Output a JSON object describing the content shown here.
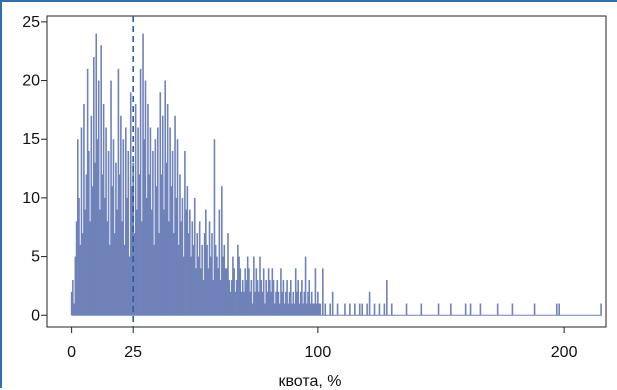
{
  "chart_data": {
    "type": "bar",
    "title": "",
    "xlabel": "квота, %",
    "ylabel": "",
    "xlim": [
      -10,
      217
    ],
    "ylim": [
      -1,
      25.5
    ],
    "x_ticks": [
      0,
      25,
      100,
      200
    ],
    "x_tick_labels": [
      "0",
      "25",
      "100",
      "200"
    ],
    "y_ticks": [
      0,
      5,
      10,
      15,
      20,
      25
    ],
    "y_tick_labels": [
      "0",
      "5",
      "10",
      "15",
      "20",
      "25"
    ],
    "reference_line": {
      "x": 25,
      "style": "dashed"
    },
    "grid": false,
    "legend": "none",
    "bar_color": "#6f82b9",
    "ref_line_color": "#2f5f9a",
    "series": [
      {
        "values": [
          [
            0,
            2
          ],
          [
            0.5,
            3
          ],
          [
            1,
            1
          ],
          [
            1.5,
            5
          ],
          [
            2,
            8
          ],
          [
            2.5,
            15
          ],
          [
            3,
            10
          ],
          [
            3.5,
            6
          ],
          [
            4,
            16
          ],
          [
            4.5,
            7
          ],
          [
            5,
            18
          ],
          [
            5.5,
            9
          ],
          [
            6,
            12
          ],
          [
            6.5,
            21
          ],
          [
            7,
            14
          ],
          [
            7.5,
            8
          ],
          [
            8,
            17
          ],
          [
            8.5,
            11
          ],
          [
            9,
            22
          ],
          [
            9.5,
            13
          ],
          [
            10,
            24
          ],
          [
            10.5,
            15
          ],
          [
            11,
            20
          ],
          [
            11.5,
            9
          ],
          [
            12,
            23
          ],
          [
            12.5,
            12
          ],
          [
            13,
            18
          ],
          [
            13.5,
            10
          ],
          [
            14,
            16
          ],
          [
            14.5,
            8
          ],
          [
            15,
            14
          ],
          [
            15.5,
            6
          ],
          [
            16,
            20
          ],
          [
            16.5,
            11
          ],
          [
            17,
            15
          ],
          [
            17.5,
            7
          ],
          [
            18,
            13
          ],
          [
            18.5,
            9
          ],
          [
            19,
            21
          ],
          [
            19.5,
            12
          ],
          [
            20,
            17
          ],
          [
            20.5,
            8
          ],
          [
            21,
            15
          ],
          [
            21.5,
            6
          ],
          [
            22,
            16
          ],
          [
            22.5,
            10
          ],
          [
            23,
            14
          ],
          [
            23.5,
            5
          ],
          [
            24,
            19
          ],
          [
            24.5,
            11
          ],
          [
            25,
            13
          ],
          [
            25.5,
            7
          ],
          [
            26,
            18
          ],
          [
            26.5,
            9
          ],
          [
            27,
            16
          ],
          [
            27.5,
            12
          ],
          [
            28,
            21
          ],
          [
            28.5,
            8
          ],
          [
            29,
            24
          ],
          [
            29.5,
            15
          ],
          [
            30,
            20
          ],
          [
            30.5,
            10
          ],
          [
            31,
            18
          ],
          [
            31.5,
            12
          ],
          [
            32,
            16
          ],
          [
            32.5,
            9
          ],
          [
            33,
            14
          ],
          [
            33.5,
            6
          ],
          [
            34,
            15
          ],
          [
            34.5,
            11
          ],
          [
            35,
            16
          ],
          [
            35.5,
            7
          ],
          [
            36,
            19
          ],
          [
            36.5,
            12
          ],
          [
            37,
            17
          ],
          [
            37.5,
            9
          ],
          [
            38,
            20
          ],
          [
            38.5,
            13
          ],
          [
            39,
            18
          ],
          [
            39.5,
            8
          ],
          [
            40,
            16
          ],
          [
            40.5,
            11
          ],
          [
            41,
            14
          ],
          [
            41.5,
            7
          ],
          [
            42,
            17
          ],
          [
            42.5,
            10
          ],
          [
            43,
            15
          ],
          [
            43.5,
            6
          ],
          [
            44,
            12
          ],
          [
            44.5,
            8
          ],
          [
            45,
            10
          ],
          [
            45.5,
            5
          ],
          [
            46,
            14
          ],
          [
            46.5,
            9
          ],
          [
            47,
            11
          ],
          [
            47.5,
            7
          ],
          [
            48,
            9
          ],
          [
            48.5,
            5
          ],
          [
            49,
            8
          ],
          [
            49.5,
            6
          ],
          [
            50,
            10
          ],
          [
            50.5,
            4
          ],
          [
            51,
            7
          ],
          [
            51.5,
            5
          ],
          [
            52,
            8
          ],
          [
            52.5,
            4
          ],
          [
            53,
            6
          ],
          [
            53.5,
            3
          ],
          [
            54,
            7
          ],
          [
            54.5,
            9
          ],
          [
            55,
            6
          ],
          [
            55.5,
            4
          ],
          [
            56,
            8
          ],
          [
            56.5,
            5
          ],
          [
            57,
            7
          ],
          [
            57.5,
            3
          ],
          [
            58,
            15
          ],
          [
            58.5,
            6
          ],
          [
            59,
            5
          ],
          [
            59.5,
            4
          ],
          [
            60,
            9
          ],
          [
            60.5,
            3
          ],
          [
            61,
            11
          ],
          [
            61.5,
            5
          ],
          [
            62,
            6
          ],
          [
            62.5,
            4
          ],
          [
            63,
            4
          ],
          [
            63.5,
            7
          ],
          [
            64,
            3
          ],
          [
            64.5,
            2
          ],
          [
            65,
            3
          ],
          [
            65.5,
            5
          ],
          [
            66,
            4
          ],
          [
            66.5,
            2
          ],
          [
            67,
            3
          ],
          [
            67.5,
            6
          ],
          [
            68,
            5
          ],
          [
            68.5,
            4
          ],
          [
            69,
            2
          ],
          [
            69.5,
            3
          ],
          [
            70,
            2
          ],
          [
            70.5,
            4
          ],
          [
            71,
            3
          ],
          [
            71.5,
            5
          ],
          [
            72,
            4
          ],
          [
            72.5,
            2
          ],
          [
            73,
            3
          ],
          [
            73.5,
            1
          ],
          [
            74,
            5
          ],
          [
            74.5,
            2
          ],
          [
            75,
            4
          ],
          [
            75.5,
            3
          ],
          [
            76,
            2
          ],
          [
            76.5,
            5
          ],
          [
            77,
            3
          ],
          [
            77.5,
            2
          ],
          [
            78,
            4
          ],
          [
            78.5,
            1
          ],
          [
            79,
            3
          ],
          [
            79.5,
            2
          ],
          [
            80,
            4
          ],
          [
            80.5,
            3
          ],
          [
            81,
            2
          ],
          [
            81.5,
            4
          ],
          [
            82,
            3
          ],
          [
            82.5,
            1
          ],
          [
            83,
            2
          ],
          [
            83.5,
            3
          ],
          [
            84,
            2
          ],
          [
            84.5,
            1
          ],
          [
            85,
            4
          ],
          [
            85.5,
            2
          ],
          [
            86,
            3
          ],
          [
            86.5,
            1
          ],
          [
            87,
            2
          ],
          [
            87.5,
            3
          ],
          [
            88,
            1
          ],
          [
            88.5,
            2
          ],
          [
            89,
            3
          ],
          [
            89.5,
            1
          ],
          [
            90,
            2
          ],
          [
            90.5,
            1
          ],
          [
            91,
            4
          ],
          [
            91.5,
            2
          ],
          [
            92,
            3
          ],
          [
            92.5,
            1
          ],
          [
            93,
            2
          ],
          [
            93.5,
            3
          ],
          [
            94,
            1
          ],
          [
            94.5,
            2
          ],
          [
            95,
            5
          ],
          [
            95.5,
            1
          ],
          [
            96,
            2
          ],
          [
            96.5,
            3
          ],
          [
            97,
            1
          ],
          [
            97.5,
            2
          ],
          [
            98,
            1
          ],
          [
            98.5,
            1
          ],
          [
            99,
            4
          ],
          [
            99.5,
            1
          ],
          [
            100,
            2
          ],
          [
            100.5,
            1
          ],
          [
            101,
            1
          ],
          [
            102,
            4
          ],
          [
            103,
            1
          ],
          [
            105,
            1
          ],
          [
            106,
            2
          ],
          [
            108,
            1
          ],
          [
            111,
            1
          ],
          [
            113,
            1
          ],
          [
            115,
            1
          ],
          [
            117,
            1
          ],
          [
            118,
            1
          ],
          [
            120,
            1
          ],
          [
            121,
            2
          ],
          [
            123,
            1
          ],
          [
            125,
            1
          ],
          [
            127,
            1
          ],
          [
            128,
            3
          ],
          [
            130,
            1
          ],
          [
            136,
            1
          ],
          [
            142,
            1
          ],
          [
            149,
            1
          ],
          [
            154,
            1
          ],
          [
            160,
            1
          ],
          [
            162,
            1
          ],
          [
            166,
            1
          ],
          [
            173,
            1
          ],
          [
            179,
            1
          ],
          [
            188,
            1
          ],
          [
            197,
            1
          ],
          [
            198,
            1
          ],
          [
            215,
            1
          ]
        ]
      }
    ]
  }
}
